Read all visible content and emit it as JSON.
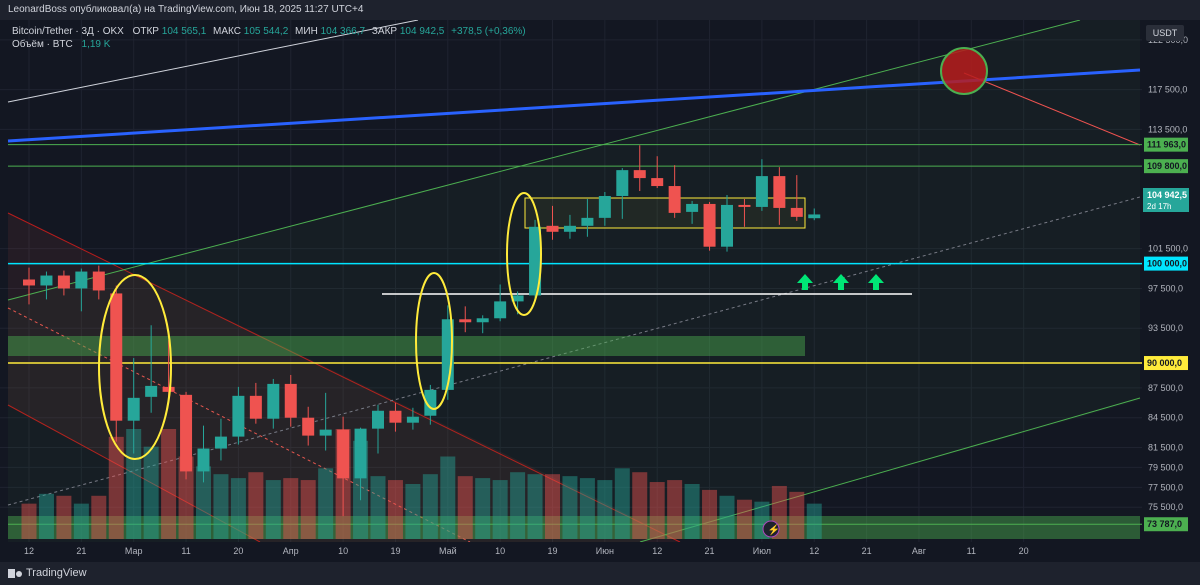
{
  "header": {
    "publish_line": "LeonardBoss опубликовал(а) на TradingView.com, Июн 18, 2025 11:27 UTC+4"
  },
  "legend": {
    "symbol": "Bitcoin/Tether · 3Д · OKX",
    "open_label": "ОТКР",
    "open_value": "104 565,1",
    "high_label": "МАКС",
    "high_value": "105 544,2",
    "low_label": "МИН",
    "low_value": "104 366,7",
    "close_label": "ЗАКР",
    "close_value": "104 942,5",
    "change": "+378,5 (+0,36%)",
    "volume_label": "Объём · BTC",
    "volume_value": "1,19 K"
  },
  "currency_button": "USDT",
  "footer": {
    "brand": "TradingView"
  },
  "colors": {
    "bull": "#26a69a",
    "bear": "#ef5350",
    "blue_line": "#2962ff",
    "green_line": "#4caf50",
    "cyan_line": "#00e5ff",
    "yellow": "#ffeb3b",
    "circle": "#b71c1c"
  },
  "chart_data": {
    "type": "candlestick",
    "y_axis": {
      "ylim": [
        72000,
        124500
      ],
      "tick_labels": [
        "122 500,0",
        "117 500,0",
        "113 500,0",
        "101 500,0",
        "97 500,0",
        "93 500,0",
        "87 500,0",
        "84 500,0",
        "81 500,0",
        "79 500,0",
        "77 500,0",
        "75 500,0"
      ],
      "tick_values": [
        122500,
        117500,
        113500,
        101500,
        97500,
        93500,
        87500,
        84500,
        81500,
        79500,
        77500,
        75500
      ]
    },
    "x_axis": {
      "tick_labels": [
        "12",
        "21",
        "Мар",
        "11",
        "20",
        "Апр",
        "10",
        "19",
        "Май",
        "10",
        "19",
        "Июн",
        "12",
        "21",
        "Июл",
        "12",
        "21",
        "Авг",
        "11",
        "20"
      ],
      "tick_index": [
        0,
        3,
        6,
        9,
        12,
        15,
        18,
        21,
        24,
        27,
        30,
        33,
        36,
        39,
        42,
        45,
        48,
        51,
        54,
        57
      ]
    },
    "candles": [
      {
        "o": 98400,
        "h": 99600,
        "l": 95900,
        "c": 97800
      },
      {
        "o": 97800,
        "h": 99200,
        "l": 96400,
        "c": 98800
      },
      {
        "o": 98800,
        "h": 99300,
        "l": 96800,
        "c": 97500
      },
      {
        "o": 97500,
        "h": 99500,
        "l": 95200,
        "c": 99200
      },
      {
        "o": 99200,
        "h": 99800,
        "l": 96400,
        "c": 97300
      },
      {
        "o": 97000,
        "h": 97800,
        "l": 82100,
        "c": 84200
      },
      {
        "o": 84200,
        "h": 90500,
        "l": 80900,
        "c": 86500
      },
      {
        "o": 86600,
        "h": 93800,
        "l": 85000,
        "c": 87700
      },
      {
        "o": 87600,
        "h": 92300,
        "l": 86000,
        "c": 87100
      },
      {
        "o": 86800,
        "h": 87100,
        "l": 78300,
        "c": 79100
      },
      {
        "o": 79100,
        "h": 83700,
        "l": 78000,
        "c": 81400
      },
      {
        "o": 81400,
        "h": 84400,
        "l": 80200,
        "c": 82600
      },
      {
        "o": 82600,
        "h": 87600,
        "l": 81800,
        "c": 86700
      },
      {
        "o": 86700,
        "h": 88000,
        "l": 83900,
        "c": 84400
      },
      {
        "o": 84400,
        "h": 88400,
        "l": 83400,
        "c": 87900
      },
      {
        "o": 87900,
        "h": 88800,
        "l": 83600,
        "c": 84500
      },
      {
        "o": 84500,
        "h": 85600,
        "l": 81700,
        "c": 82700
      },
      {
        "o": 82700,
        "h": 87000,
        "l": 81200,
        "c": 83300
      },
      {
        "o": 83300,
        "h": 84600,
        "l": 74600,
        "c": 78400
      },
      {
        "o": 78400,
        "h": 83500,
        "l": 76200,
        "c": 83400
      },
      {
        "o": 83400,
        "h": 85800,
        "l": 80900,
        "c": 85200
      },
      {
        "o": 85200,
        "h": 86000,
        "l": 83100,
        "c": 84000
      },
      {
        "o": 84000,
        "h": 85500,
        "l": 83300,
        "c": 84600
      },
      {
        "o": 84700,
        "h": 87800,
        "l": 83800,
        "c": 87300
      },
      {
        "o": 87300,
        "h": 95800,
        "l": 86300,
        "c": 94400
      },
      {
        "o": 94400,
        "h": 95700,
        "l": 93100,
        "c": 94100
      },
      {
        "o": 94100,
        "h": 94800,
        "l": 93000,
        "c": 94500
      },
      {
        "o": 94500,
        "h": 97900,
        "l": 94200,
        "c": 96200
      },
      {
        "o": 96200,
        "h": 97200,
        "l": 94900,
        "c": 96800
      },
      {
        "o": 96800,
        "h": 104400,
        "l": 96400,
        "c": 103700
      },
      {
        "o": 103800,
        "h": 105800,
        "l": 102400,
        "c": 103200
      },
      {
        "o": 103200,
        "h": 104900,
        "l": 102500,
        "c": 103800
      },
      {
        "o": 103800,
        "h": 106500,
        "l": 102700,
        "c": 104600
      },
      {
        "o": 104600,
        "h": 107200,
        "l": 103800,
        "c": 106800
      },
      {
        "o": 106800,
        "h": 109600,
        "l": 104500,
        "c": 109400
      },
      {
        "o": 109400,
        "h": 111900,
        "l": 107300,
        "c": 108600
      },
      {
        "o": 108600,
        "h": 110800,
        "l": 107600,
        "c": 107800
      },
      {
        "o": 107800,
        "h": 109900,
        "l": 104600,
        "c": 105100
      },
      {
        "o": 105200,
        "h": 106300,
        "l": 104000,
        "c": 106000
      },
      {
        "o": 106000,
        "h": 106200,
        "l": 101300,
        "c": 101700
      },
      {
        "o": 101700,
        "h": 106900,
        "l": 101200,
        "c": 105900
      },
      {
        "o": 105900,
        "h": 106500,
        "l": 103700,
        "c": 105700
      },
      {
        "o": 105700,
        "h": 110500,
        "l": 105300,
        "c": 108800
      },
      {
        "o": 108800,
        "h": 109700,
        "l": 103900,
        "c": 105600
      },
      {
        "o": 105600,
        "h": 108900,
        "l": 104300,
        "c": 104700
      },
      {
        "o": 104565.1,
        "h": 105544.2,
        "l": 104366.7,
        "c": 104942.5
      }
    ],
    "volume": [
      180,
      230,
      220,
      180,
      220,
      520,
      560,
      470,
      560,
      420,
      370,
      330,
      310,
      340,
      300,
      310,
      300,
      360,
      560,
      500,
      320,
      300,
      280,
      330,
      420,
      320,
      310,
      300,
      340,
      330,
      330,
      320,
      310,
      300,
      360,
      340,
      290,
      300,
      280,
      250,
      220,
      200,
      190,
      270,
      240,
      180
    ],
    "levels": [
      {
        "price": 111963,
        "label": "111 963,0"
      },
      {
        "price": 109800,
        "label": "109 800,0"
      },
      {
        "price": 100000,
        "label": "100 000,0"
      },
      {
        "price": 90000,
        "label": "90 000,0"
      },
      {
        "price": 73787,
        "label": "73 787,0"
      }
    ],
    "last_price": {
      "label": "104 942,5",
      "countdown": "2d 17h"
    }
  }
}
